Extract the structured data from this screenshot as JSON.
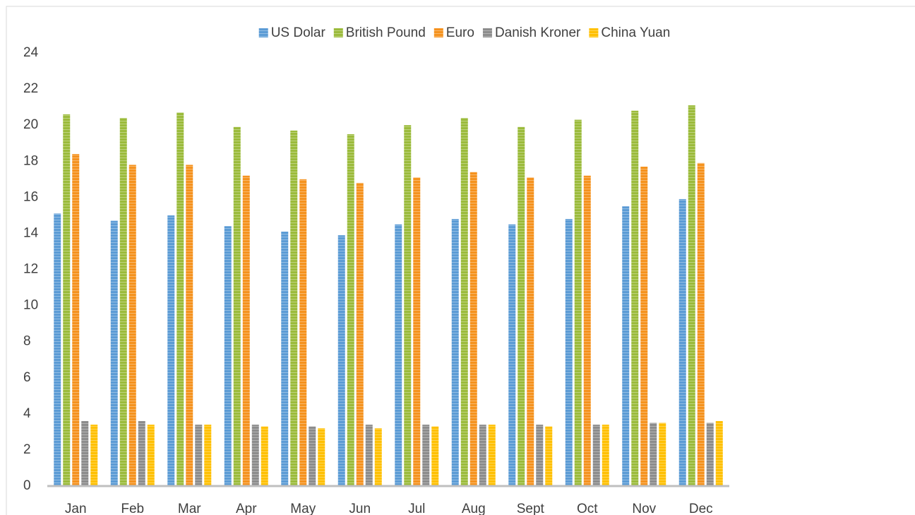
{
  "chart_data": {
    "type": "bar",
    "categories": [
      "Jan",
      "Feb",
      "Mar",
      "Apr",
      "May",
      "Jun",
      "Jul",
      "Aug",
      "Sept",
      "Oct",
      "Nov",
      "Dec"
    ],
    "series": [
      {
        "name": "US Dolar",
        "color": "#5b9bd5",
        "values": [
          15.1,
          14.7,
          15.0,
          14.4,
          14.1,
          13.9,
          14.5,
          14.8,
          14.5,
          14.8,
          15.5,
          15.9
        ]
      },
      {
        "name": "British Pound",
        "color": "#9bbb3b",
        "values": [
          20.6,
          20.4,
          20.7,
          19.9,
          19.7,
          19.5,
          20.0,
          20.4,
          19.9,
          20.3,
          20.8,
          21.1
        ]
      },
      {
        "name": "Euro",
        "color": "#f5921e",
        "values": [
          18.4,
          17.8,
          17.8,
          17.2,
          17.0,
          16.8,
          17.1,
          17.4,
          17.1,
          17.2,
          17.7,
          17.9
        ]
      },
      {
        "name": "Danish Kroner",
        "color": "#8c8c8c",
        "values": [
          3.6,
          3.6,
          3.4,
          3.4,
          3.3,
          3.4,
          3.4,
          3.4,
          3.4,
          3.4,
          3.5,
          3.5
        ]
      },
      {
        "name": "China Yuan",
        "color": "#ffc000",
        "values": [
          3.4,
          3.4,
          3.4,
          3.3,
          3.2,
          3.2,
          3.3,
          3.4,
          3.3,
          3.4,
          3.5,
          3.6
        ]
      }
    ],
    "ylim": [
      0,
      24
    ],
    "yticks": [
      0,
      2,
      4,
      6,
      8,
      10,
      12,
      14,
      16,
      18,
      20,
      22,
      24
    ],
    "grid": false,
    "legend": "top"
  }
}
